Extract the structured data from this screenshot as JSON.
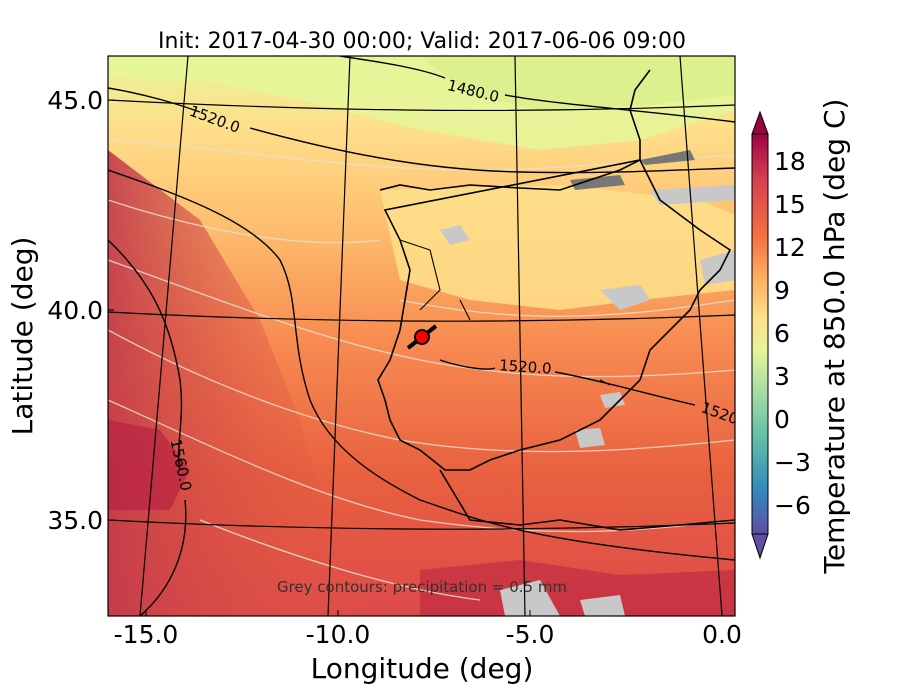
{
  "title": "Init: 2017-04-30 00:00; Valid: 2017-06-06 09:00",
  "xlabel": "Longitude (deg)",
  "ylabel": "Latitude (deg)",
  "colorbar_label": "Temperature at 850.0 hPa (deg C)",
  "x_ticks": [
    "-15.0",
    "-10.0",
    "-5.0",
    "0.0"
  ],
  "y_ticks": [
    "45.0",
    "40.0",
    "35.0"
  ],
  "colorbar_ticks": [
    "18",
    "15",
    "12",
    "9",
    "6",
    "3",
    "0",
    "−3",
    "−6"
  ],
  "contour_labels": [
    "1480.0",
    "1520.0",
    "1520.0",
    "1520",
    "1560.0"
  ],
  "note": "Grey contours: precipitation = 0.5 mm",
  "map": {
    "lon_range": [
      -16,
      0.3
    ],
    "lat_range": [
      32.7,
      46
    ],
    "station": {
      "lon": -7.6,
      "lat": 39.3,
      "color": "#ff0000"
    },
    "colors": {
      "warm": "#d53e4f",
      "mid": "#fdae61",
      "cool": "#fee08b",
      "cold": "#e6f598",
      "precip": "#c8c8c8"
    }
  },
  "colorbar": {
    "min": -8,
    "max": 20,
    "colors": [
      "#5e4fa2",
      "#3288bd",
      "#66c2a5",
      "#abdda4",
      "#e6f598",
      "#fee08b",
      "#fdae61",
      "#f46d43",
      "#d53e4f",
      "#9e0142"
    ]
  }
}
